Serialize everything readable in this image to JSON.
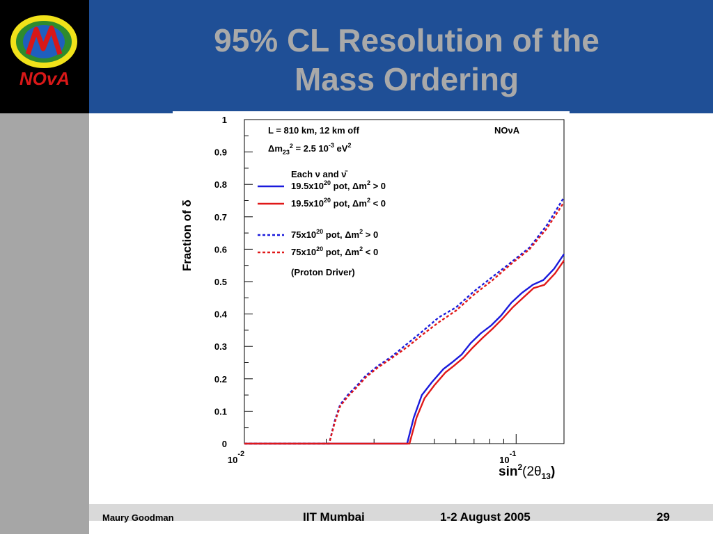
{
  "slide": {
    "title_line1": "95% CL Resolution of the",
    "title_line2": "Mass Ordering",
    "logo_text": "NOvA"
  },
  "footer": {
    "author": "Maury Goodman",
    "venue": "IIT Mumbai",
    "date": "1-2 August 2005",
    "page": "29"
  },
  "colors": {
    "header_bg": "#1f4f96",
    "title": "#a9a9a9",
    "left_bar": "#a6a6a6",
    "footer_bar": "#d9d9d9",
    "blue_series": "#1a1adc",
    "red_series": "#e01818"
  },
  "chart_data": {
    "type": "line",
    "xscale": "log",
    "xlim": [
      0.01,
      0.15
    ],
    "ylim": [
      0,
      1
    ],
    "ylabel": "Fraction of δ",
    "xlabel_main": "sin",
    "xlabel_sup": "2",
    "xlabel_mid": "(2θ",
    "xlabel_sub": "13",
    "xlabel_end": ")",
    "yticks": [
      {
        "v": 0,
        "label": "0"
      },
      {
        "v": 0.1,
        "label": "0.1"
      },
      {
        "v": 0.2,
        "label": "0.2"
      },
      {
        "v": 0.3,
        "label": "0.3"
      },
      {
        "v": 0.4,
        "label": "0.4"
      },
      {
        "v": 0.5,
        "label": "0.5"
      },
      {
        "v": 0.6,
        "label": "0.6"
      },
      {
        "v": 0.7,
        "label": "0.7"
      },
      {
        "v": 0.8,
        "label": "0.8"
      },
      {
        "v": 0.9,
        "label": "0.9"
      },
      {
        "v": 1,
        "label": "1"
      }
    ],
    "xticks": [
      {
        "v": 0.01,
        "base": "10",
        "exp": "-2"
      },
      {
        "v": 0.1,
        "base": "10",
        "exp": "-1"
      }
    ],
    "annotations": {
      "line1": "L = 810 km, 12 km off",
      "line2_pre": "Δm",
      "line2_sub": "23",
      "line2_sup": "2",
      "line2_post": " = 2.5 10",
      "line2_exp": "-3",
      "line2_unit": " eV",
      "line2_unit_sup": "2",
      "experiment": "NOνA",
      "legend_header": "Each ν and ν̄",
      "legend_note": "(Proton Driver)"
    },
    "series": [
      {
        "pot": "19.5x10",
        "pot_exp": "20",
        "sign_text": " pot, Δm",
        "sign_sup": "2",
        "relation": " >  0",
        "color": "#1a1adc",
        "style": "solid",
        "x": [
          0.0397,
          0.042,
          0.045,
          0.049,
          0.054,
          0.058,
          0.063,
          0.068,
          0.074,
          0.081,
          0.088,
          0.096,
          0.105,
          0.115,
          0.126,
          0.138,
          0.15
        ],
        "y": [
          0,
          0.08,
          0.15,
          0.19,
          0.23,
          0.25,
          0.275,
          0.31,
          0.34,
          0.365,
          0.395,
          0.435,
          0.465,
          0.49,
          0.505,
          0.54,
          0.585
        ]
      },
      {
        "pot": "19.5x10",
        "pot_exp": "20",
        "sign_text": " pot, Δm",
        "sign_sup": "2",
        "relation": " <  0",
        "color": "#e01818",
        "style": "solid",
        "x": [
          0.0405,
          0.043,
          0.046,
          0.05,
          0.055,
          0.059,
          0.064,
          0.069,
          0.075,
          0.082,
          0.089,
          0.097,
          0.106,
          0.116,
          0.127,
          0.139,
          0.15
        ],
        "y": [
          0,
          0.08,
          0.14,
          0.18,
          0.22,
          0.24,
          0.265,
          0.295,
          0.325,
          0.355,
          0.385,
          0.42,
          0.45,
          0.48,
          0.49,
          0.525,
          0.565
        ]
      },
      {
        "pot": "75x10",
        "pot_exp": "20",
        "sign_text": " pot, Δm",
        "sign_sup": "2",
        "relation": " >  0",
        "color": "#1a1adc",
        "style": "dashed",
        "x": [
          0.0205,
          0.0215,
          0.0225,
          0.024,
          0.026,
          0.028,
          0.031,
          0.035,
          0.04,
          0.045,
          0.052,
          0.06,
          0.07,
          0.082,
          0.096,
          0.112,
          0.13,
          0.15
        ],
        "y": [
          0,
          0.07,
          0.12,
          0.15,
          0.18,
          0.21,
          0.24,
          0.27,
          0.31,
          0.345,
          0.39,
          0.42,
          0.47,
          0.515,
          0.56,
          0.605,
          0.675,
          0.76
        ]
      },
      {
        "pot": "75x10",
        "pot_exp": "20",
        "sign_text": " pot, Δm",
        "sign_sup": "2",
        "relation": " <  0",
        "color": "#e01818",
        "style": "dashed",
        "x": [
          0.0205,
          0.0215,
          0.0225,
          0.024,
          0.026,
          0.028,
          0.031,
          0.035,
          0.04,
          0.045,
          0.052,
          0.06,
          0.07,
          0.082,
          0.096,
          0.112,
          0.13,
          0.15
        ],
        "y": [
          0,
          0.065,
          0.115,
          0.145,
          0.175,
          0.205,
          0.235,
          0.265,
          0.3,
          0.335,
          0.375,
          0.41,
          0.46,
          0.505,
          0.555,
          0.6,
          0.665,
          0.745
        ]
      }
    ]
  }
}
